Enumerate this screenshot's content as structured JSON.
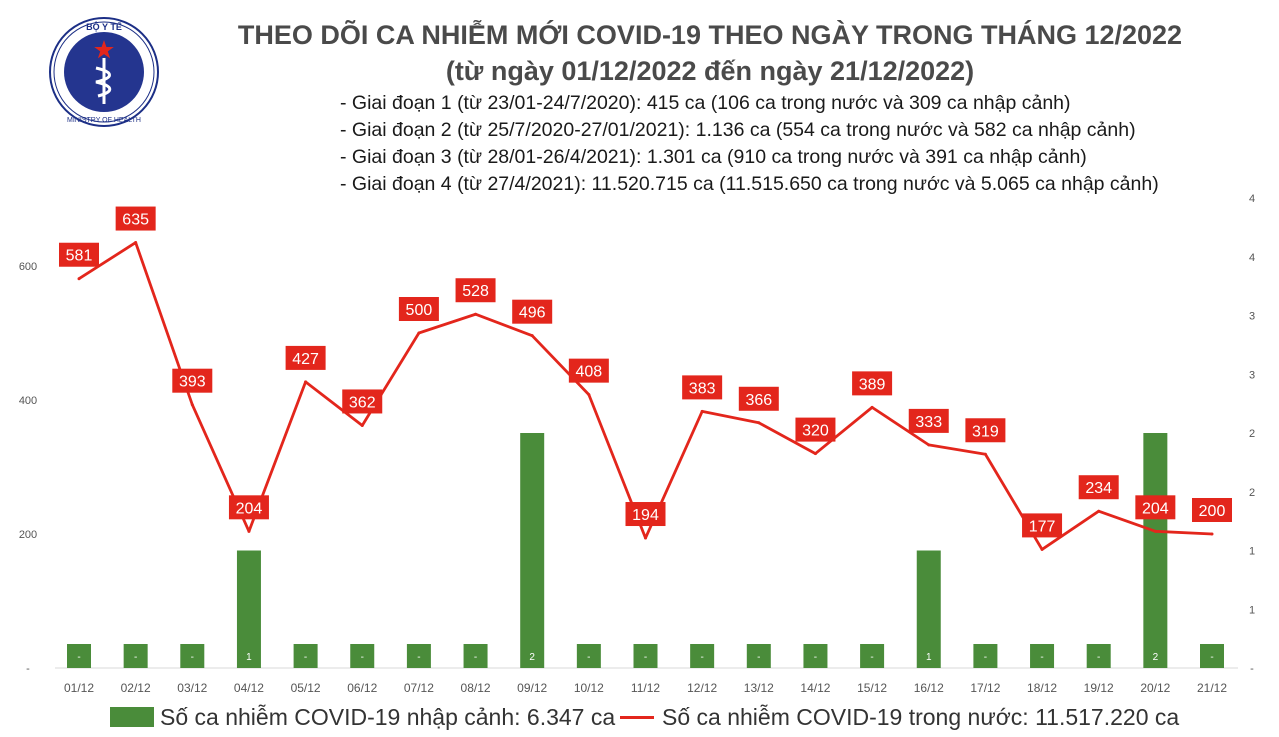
{
  "logo": {
    "text_top": "BỘ Y TẾ",
    "text_bottom": "MINISTRY OF HEALTH"
  },
  "header": {
    "title": "THEO DÕI CA NHIỄM MỚI COVID-19 THEO NGÀY TRONG THÁNG 12/2022",
    "subtitle": "(từ ngày 01/12/2022 đến ngày 21/12/2022)",
    "stages": [
      "- Giai đoạn 1 (từ 23/01-24/7/2020): 415 ca (106 ca trong nước và 309 ca nhập cảnh)",
      "- Giai đoạn 2 (từ 25/7/2020-27/01/2021): 1.136 ca (554 ca trong nước và 582 ca nhập cảnh)",
      "- Giai đoạn 3 (từ 28/01-26/4/2021): 1.301 ca (910 ca trong nước và 391 ca nhập cảnh)",
      "- Giai đoạn 4 (từ 27/4/2021): 11.520.715 ca (11.515.650 ca trong nước và 5.065 ca nhập cảnh)"
    ]
  },
  "legend": {
    "bar_label": "Số ca nhiễm COVID-19 nhập cảnh: 6.347 ca",
    "line_label": "Số ca nhiễm COVID-19 trong nước: 11.517.220 ca"
  },
  "colors": {
    "bar": "#4a8c3a",
    "line": "#e3261c",
    "label_bg": "#e3261c",
    "label_text": "#ffffff",
    "axis_text": "#555555",
    "gridline": "#d9d9d9"
  },
  "chart_data": {
    "type": "bar+line",
    "categories": [
      "01/12",
      "02/12",
      "03/12",
      "04/12",
      "05/12",
      "06/12",
      "07/12",
      "08/12",
      "09/12",
      "10/12",
      "11/12",
      "12/12",
      "13/12",
      "14/12",
      "15/12",
      "16/12",
      "17/12",
      "18/12",
      "19/12",
      "20/12",
      "21/12"
    ],
    "series": [
      {
        "name": "Số ca nhiễm COVID-19 nhập cảnh: 6.347 ca",
        "type": "bar",
        "axis": "right",
        "values": [
          0,
          0,
          0,
          1,
          0,
          0,
          0,
          0,
          2,
          0,
          0,
          0,
          0,
          0,
          0,
          1,
          0,
          0,
          0,
          2,
          0
        ],
        "labels": [
          "-",
          "-",
          "-",
          "1",
          "-",
          "-",
          "-",
          "-",
          "2",
          "-",
          "-",
          "-",
          "-",
          "-",
          "-",
          "1",
          "-",
          "-",
          "-",
          "2",
          "-"
        ]
      },
      {
        "name": "Số ca nhiễm COVID-19 trong nước: 11.517.220 ca",
        "type": "line",
        "axis": "left",
        "values": [
          581,
          635,
          393,
          204,
          427,
          362,
          500,
          528,
          496,
          408,
          194,
          383,
          366,
          320,
          389,
          333,
          319,
          177,
          234,
          204,
          200
        ],
        "labels": [
          "581",
          "635",
          "393",
          "204",
          "427",
          "362",
          "500",
          "528",
          "496",
          "408",
          "194",
          "383",
          "366",
          "320",
          "389",
          "333",
          "319",
          "177",
          "234",
          "204",
          "200"
        ]
      }
    ],
    "y_left": {
      "ylim": [
        0,
        600
      ],
      "ticks": [
        0,
        200,
        400,
        600
      ],
      "tick_labels": [
        "-",
        "200",
        "400",
        "600"
      ]
    },
    "y_right": {
      "ylim": [
        0,
        4
      ],
      "ticks": [
        0,
        0.5,
        1,
        1.5,
        2,
        2.5,
        3,
        3.5,
        4
      ],
      "tick_labels": [
        "-",
        "1",
        "1",
        "2",
        "2",
        "3",
        "3",
        "4",
        "4"
      ]
    },
    "grid": false,
    "legend_position": "bottom"
  }
}
